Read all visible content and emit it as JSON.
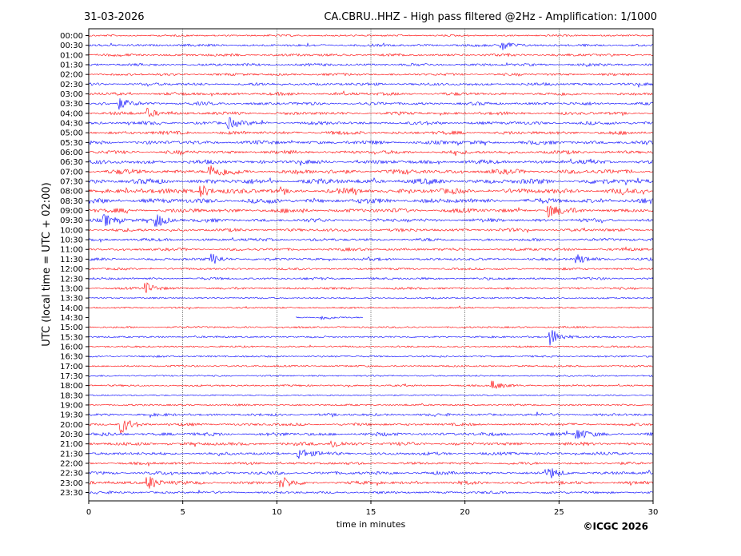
{
  "header": {
    "date": "31-03-2026",
    "title": "CA.CBRU..HHZ - High pass filtered @2Hz - Amplification: 1/1000"
  },
  "copyright": "©ICGC 2026",
  "colors": {
    "trace_a": "#ff0000",
    "trace_b": "#0000ff",
    "axis": "#000000",
    "grid": "#000000"
  },
  "chart_data": {
    "type": "line",
    "xlabel": "time in minutes",
    "ylabel": "UTC (local time = UTC + 02:00)",
    "xlim": [
      0,
      30
    ],
    "xticks": [
      "0",
      "5",
      "10",
      "15",
      "20",
      "25",
      "30"
    ],
    "vertical_gridlines_at": [
      5,
      10,
      15,
      20,
      25
    ],
    "rows": [
      "00:00",
      "00:30",
      "01:00",
      "01:30",
      "02:00",
      "02:30",
      "03:00",
      "03:30",
      "04:00",
      "04:30",
      "05:00",
      "05:30",
      "06:00",
      "06:30",
      "07:00",
      "07:30",
      "08:00",
      "08:30",
      "09:00",
      "09:30",
      "10:00",
      "10:30",
      "11:00",
      "11:30",
      "12:00",
      "12:30",
      "13:00",
      "13:30",
      "14:00",
      "14:30",
      "15:00",
      "15:30",
      "16:00",
      "16:30",
      "17:00",
      "17:30",
      "18:00",
      "18:30",
      "19:00",
      "19:30",
      "20:00",
      "20:30",
      "21:00",
      "21:30",
      "22:00",
      "22:30",
      "23:00",
      "23:30"
    ],
    "row_activity": [
      0.2,
      0.35,
      0.4,
      0.4,
      0.35,
      0.45,
      0.5,
      0.5,
      0.5,
      0.55,
      0.6,
      0.7,
      0.6,
      0.7,
      0.9,
      1.0,
      1.0,
      0.95,
      0.8,
      0.6,
      0.5,
      0.45,
      0.45,
      0.4,
      0.3,
      0.35,
      0.3,
      0.15,
      0.15,
      0.1,
      0.2,
      0.2,
      0.2,
      0.2,
      0.2,
      0.15,
      0.2,
      0.1,
      0.2,
      0.4,
      0.4,
      0.6,
      0.55,
      0.5,
      0.4,
      0.55,
      0.55,
      0.35
    ],
    "events": [
      {
        "row": "00:30",
        "t": 22.0,
        "amp": 0.8
      },
      {
        "row": "03:30",
        "t": 1.7,
        "amp": 0.7
      },
      {
        "row": "04:00",
        "t": 3.2,
        "amp": 0.6
      },
      {
        "row": "04:30",
        "t": 7.5,
        "amp": 0.7
      },
      {
        "row": "07:00",
        "t": 6.5,
        "amp": 0.9
      },
      {
        "row": "08:00",
        "t": 6.0,
        "amp": 0.9
      },
      {
        "row": "09:00",
        "t": 24.5,
        "amp": 0.8
      },
      {
        "row": "09:30",
        "t": 3.6,
        "amp": 1.0
      },
      {
        "row": "09:30",
        "t": 0.9,
        "amp": 0.7
      },
      {
        "row": "11:30",
        "t": 6.6,
        "amp": 0.7
      },
      {
        "row": "11:30",
        "t": 26.0,
        "amp": 0.6
      },
      {
        "row": "13:00",
        "t": 3.1,
        "amp": 0.7
      },
      {
        "row": "14:30",
        "t": 12.5,
        "amp": 0.3
      },
      {
        "row": "15:30",
        "t": 24.6,
        "amp": 1.2
      },
      {
        "row": "18:00",
        "t": 21.5,
        "amp": 0.6
      },
      {
        "row": "20:00",
        "t": 1.8,
        "amp": 1.1
      },
      {
        "row": "20:30",
        "t": 26.0,
        "amp": 0.8
      },
      {
        "row": "21:00",
        "t": 13.0,
        "amp": 0.6
      },
      {
        "row": "21:30",
        "t": 11.2,
        "amp": 0.8
      },
      {
        "row": "22:30",
        "t": 24.5,
        "amp": 0.7
      },
      {
        "row": "23:00",
        "t": 3.2,
        "amp": 1.0
      },
      {
        "row": "23:00",
        "t": 10.3,
        "amp": 0.7
      }
    ],
    "gaps": [
      {
        "row": "14:30",
        "from": 0.0,
        "to": 11.0
      },
      {
        "row": "14:30",
        "from": 14.6,
        "to": 30.0
      }
    ]
  }
}
